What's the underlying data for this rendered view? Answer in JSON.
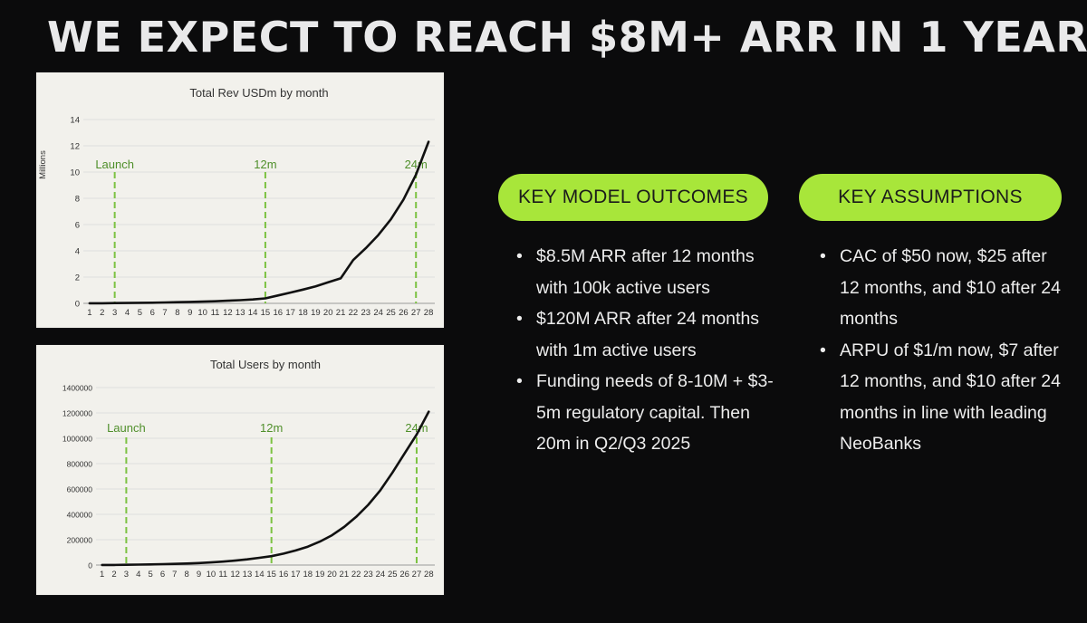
{
  "slide": {
    "title": "WE EXPECT TO REACH $8M+ ARR IN 1 YEAR"
  },
  "outcomes": {
    "heading": "KEY MODEL OUTCOMES",
    "items": [
      "$8.5M ARR after 12 months with 100k active users",
      "$120M ARR after 24 months with 1m active users",
      "Funding needs of 8-10M + $3-5m regulatory capital. Then 20m in Q2/Q3 2025"
    ]
  },
  "assumptions": {
    "heading": "KEY ASSUMPTIONS",
    "items": [
      "CAC of $50 now, $25 after 12 months, and $10 after 24 months",
      "ARPU of $1/m now, $7 after 12 months, and $10 after 24 months in line with leading NeoBanks"
    ]
  },
  "colors": {
    "accent": "#a8e63a",
    "milestone_line": "#7cc242",
    "milestone_text": "#4f8f2a",
    "series_line": "#111111"
  },
  "chart_data": [
    {
      "type": "line",
      "title": "Total Rev USDm by month",
      "ylabel": "Millions",
      "xlabel": "",
      "ylim": [
        0,
        14
      ],
      "yticks": [
        "0",
        "2",
        "4",
        "6",
        "8",
        "10",
        "12",
        "14"
      ],
      "x": [
        1,
        2,
        3,
        4,
        5,
        6,
        7,
        8,
        9,
        10,
        11,
        12,
        13,
        14,
        15,
        16,
        17,
        18,
        19,
        20,
        21,
        22,
        23,
        24,
        25,
        26,
        27,
        28
      ],
      "series": [
        {
          "values": [
            0.01,
            0.01,
            0.02,
            0.03,
            0.04,
            0.05,
            0.07,
            0.09,
            0.11,
            0.13,
            0.16,
            0.2,
            0.24,
            0.3,
            0.38,
            0.6,
            0.82,
            1.05,
            1.3,
            1.6,
            1.9,
            3.3,
            4.2,
            5.2,
            6.4,
            7.9,
            9.8,
            12.3
          ]
        }
      ],
      "milestones": [
        {
          "x": 3,
          "label": "Launch"
        },
        {
          "x": 15,
          "label": "12m"
        },
        {
          "x": 27,
          "label": "24m"
        }
      ],
      "grid": true,
      "legend": "none"
    },
    {
      "type": "line",
      "title": "Total Users by month",
      "xlabel": "",
      "ylabel": "",
      "ylim": [
        0,
        1400000
      ],
      "yticks": [
        "0",
        "200000",
        "400000",
        "600000",
        "800000",
        "1000000",
        "1200000",
        "1400000"
      ],
      "x": [
        1,
        2,
        3,
        4,
        5,
        6,
        7,
        8,
        9,
        10,
        11,
        12,
        13,
        14,
        15,
        16,
        17,
        18,
        19,
        20,
        21,
        22,
        23,
        24,
        25,
        26,
        27,
        28
      ],
      "series": [
        {
          "values": [
            500,
            1000,
            2000,
            3500,
            5000,
            7000,
            9500,
            12500,
            16000,
            21000,
            27000,
            35000,
            45000,
            57000,
            70000,
            90000,
            115000,
            145000,
            185000,
            235000,
            300000,
            380000,
            475000,
            590000,
            730000,
            880000,
            1030000,
            1210000
          ]
        }
      ],
      "milestones": [
        {
          "x": 3,
          "label": "Launch"
        },
        {
          "x": 15,
          "label": "12m"
        },
        {
          "x": 27,
          "label": "24m"
        }
      ],
      "grid": true,
      "legend": "none"
    }
  ]
}
